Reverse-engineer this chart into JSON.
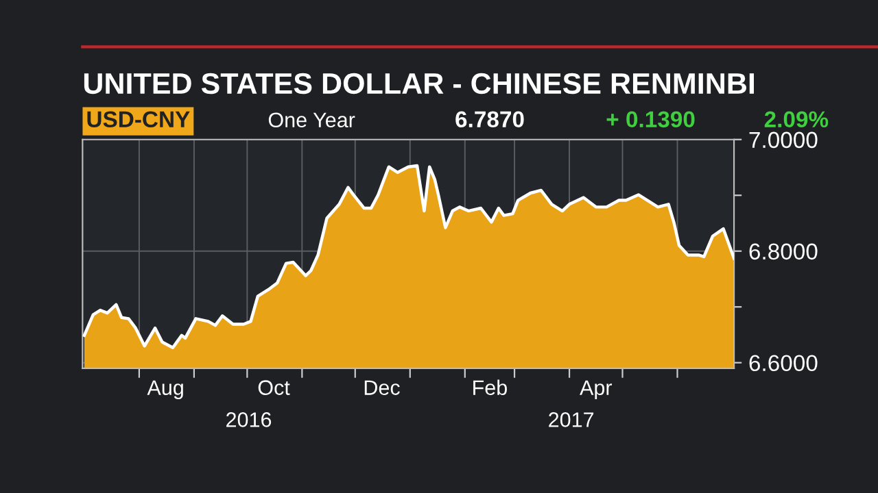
{
  "chart_data": {
    "type": "area",
    "title": "UNITED STATES DOLLAR - CHINESE RENMINBI",
    "subtitle": "USD-CNY",
    "annotations": [
      "One Year",
      "6.7870",
      "+ 0.1390",
      "2.09%",
      "2016",
      "2017"
    ],
    "x": [
      "2016-07-01",
      "2016-07-06",
      "2016-07-10",
      "2016-07-14",
      "2016-07-19",
      "2016-07-22",
      "2016-07-26",
      "2016-07-30",
      "2016-08-04",
      "2016-08-10",
      "2016-08-14",
      "2016-08-20",
      "2016-08-25",
      "2016-08-27",
      "2016-09-02",
      "2016-09-09",
      "2016-09-13",
      "2016-09-17",
      "2016-09-23",
      "2016-09-29",
      "2016-10-03",
      "2016-10-07",
      "2016-10-13",
      "2016-10-18",
      "2016-10-23",
      "2016-10-27",
      "2016-11-03",
      "2016-11-06",
      "2016-11-10",
      "2016-11-15",
      "2016-11-22",
      "2016-11-27",
      "2016-11-30",
      "2016-12-06",
      "2016-12-10",
      "2016-12-14",
      "2016-12-20",
      "2016-12-25",
      "2016-12-31",
      "2017-01-05",
      "2017-01-09",
      "2017-01-12",
      "2017-01-15",
      "2017-01-17",
      "2017-01-21",
      "2017-01-25",
      "2017-01-29",
      "2017-02-03",
      "2017-02-10",
      "2017-02-16",
      "2017-02-20",
      "2017-02-23",
      "2017-02-28",
      "2017-03-03",
      "2017-03-10",
      "2017-03-16",
      "2017-03-22",
      "2017-03-28",
      "2017-04-01",
      "2017-04-09",
      "2017-04-16",
      "2017-04-22",
      "2017-04-29",
      "2017-05-03",
      "2017-05-10",
      "2017-05-16",
      "2017-05-21",
      "2017-05-27",
      "2017-05-30",
      "2017-06-02",
      "2017-06-07",
      "2017-06-13",
      "2017-06-16",
      "2017-06-21",
      "2017-06-27",
      "2017-07-03"
    ],
    "series": [
      {
        "color": "#e8a317",
        "values": [
          6.649,
          6.686,
          6.694,
          6.689,
          6.704,
          6.681,
          6.679,
          6.662,
          6.63,
          6.662,
          6.637,
          6.627,
          6.649,
          6.644,
          6.679,
          6.674,
          6.667,
          6.684,
          6.669,
          6.669,
          6.674,
          6.719,
          6.731,
          6.743,
          6.778,
          6.78,
          6.756,
          6.765,
          6.793,
          6.859,
          6.884,
          6.914,
          6.901,
          6.877,
          6.877,
          6.901,
          6.951,
          6.941,
          6.951,
          6.953,
          6.872,
          6.951,
          6.928,
          6.901,
          6.842,
          6.872,
          6.879,
          6.872,
          6.877,
          6.852,
          6.877,
          6.864,
          6.867,
          6.891,
          6.904,
          6.909,
          6.884,
          6.872,
          6.884,
          6.896,
          6.879,
          6.879,
          6.891,
          6.891,
          6.901,
          6.889,
          6.879,
          6.884,
          6.852,
          6.81,
          6.793,
          6.793,
          6.79,
          6.827,
          6.84,
          6.787
        ]
      }
    ],
    "xlim": [
      "2016-06-30",
      "2017-07-03"
    ],
    "xticks": [
      {
        "value": "2016-08-01",
        "label": null
      },
      {
        "value": "2016-08-16",
        "label": "Aug"
      },
      {
        "value": "2016-09-01",
        "label": null
      },
      {
        "value": "2016-10-01",
        "label": null
      },
      {
        "value": "2016-10-16",
        "label": "Oct"
      },
      {
        "value": "2016-11-01",
        "label": null
      },
      {
        "value": "2016-12-01",
        "label": null
      },
      {
        "value": "2016-12-16",
        "label": "Dec"
      },
      {
        "value": "2017-01-01",
        "label": null
      },
      {
        "value": "2017-02-01",
        "label": null
      },
      {
        "value": "2017-02-15",
        "label": "Feb"
      },
      {
        "value": "2017-03-01",
        "label": null
      },
      {
        "value": "2017-04-01",
        "label": null
      },
      {
        "value": "2017-04-16",
        "label": "Apr"
      },
      {
        "value": "2017-05-01",
        "label": null
      },
      {
        "value": "2017-06-01",
        "label": null
      }
    ],
    "ylim": [
      6.59,
      7.0
    ],
    "yticks": [
      {
        "value": 6.6,
        "label": "6.6000"
      },
      {
        "value": 6.7,
        "label": null
      },
      {
        "value": 6.8,
        "label": "6.8000"
      },
      {
        "value": 6.9,
        "label": null
      },
      {
        "value": 7.0,
        "label": "7.0000"
      }
    ],
    "grid": true
  }
}
